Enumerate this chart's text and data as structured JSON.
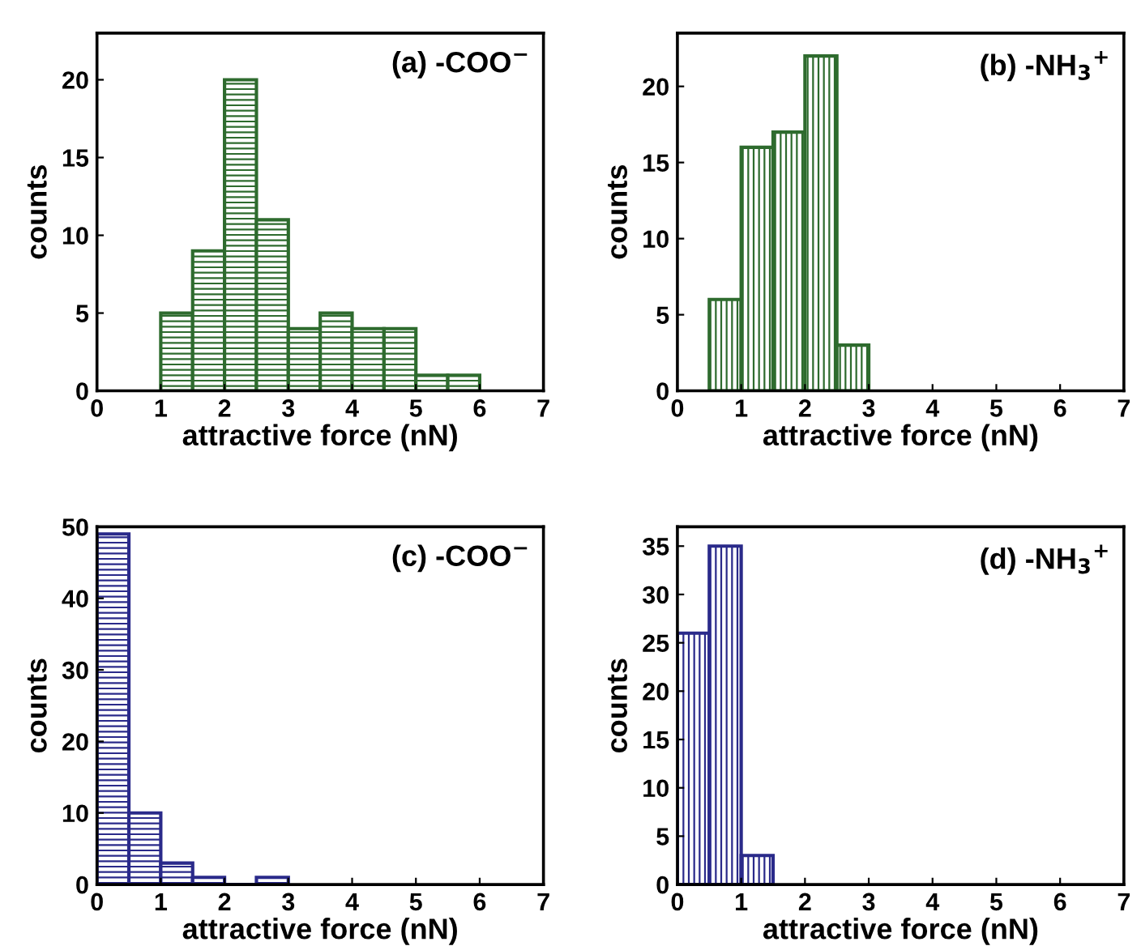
{
  "chart_data": [
    {
      "type": "histogram",
      "xlabel": "attractive force (nN)",
      "ylabel": "counts",
      "annotations": [
        "(a) -COO$^{−}$"
      ],
      "bins": [
        1,
        1.5,
        2,
        2.5,
        3,
        3.5,
        4,
        4.5,
        5,
        5.5,
        6
      ],
      "values": [
        5,
        9,
        20,
        11,
        4,
        5,
        4,
        4,
        1,
        1
      ],
      "color": "#2e6b2e",
      "xlim": [
        0,
        7
      ],
      "xticks": [
        0,
        1,
        2,
        3,
        4,
        5,
        6,
        7
      ],
      "ylim": [
        0,
        23
      ],
      "yticks": [
        0,
        5,
        10,
        15,
        20
      ],
      "grid": false,
      "legend": false
    },
    {
      "type": "histogram",
      "xlabel": "attractive force (nN)",
      "ylabel": "counts",
      "annotations": [
        "(b) -NH$_{3}$$^{+}$"
      ],
      "bins": [
        0.5,
        1,
        1.5,
        2,
        2.5,
        3
      ],
      "values": [
        6,
        16,
        17,
        22,
        3
      ],
      "color": "#2e6b2e",
      "xlim": [
        0,
        7
      ],
      "xticks": [
        0,
        1,
        2,
        3,
        4,
        5,
        6,
        7
      ],
      "ylim": [
        0,
        23.5
      ],
      "yticks": [
        0,
        5,
        10,
        15,
        20
      ],
      "grid": false,
      "legend": false
    },
    {
      "type": "histogram",
      "xlabel": "attractive force (nN)",
      "ylabel": "counts",
      "annotations": [
        "(c) -COO$^{−}$"
      ],
      "bins": [
        0,
        0.5,
        1,
        1.5,
        2,
        2.5,
        3
      ],
      "values": [
        49,
        10,
        3,
        1,
        0,
        1
      ],
      "color": "#2a2a8a",
      "xlim": [
        0,
        7
      ],
      "xticks": [
        0,
        1,
        2,
        3,
        4,
        5,
        6,
        7
      ],
      "ylim": [
        0,
        50
      ],
      "yticks": [
        0,
        10,
        20,
        30,
        40,
        50
      ],
      "grid": false,
      "legend": false
    },
    {
      "type": "histogram",
      "xlabel": "attractive force (nN)",
      "ylabel": "counts",
      "annotations": [
        "(d) -NH$_{3}$$^{+}$"
      ],
      "bins": [
        0,
        0.5,
        1,
        1.5
      ],
      "values": [
        26,
        35,
        3
      ],
      "color": "#2a2a8a",
      "xlim": [
        0,
        7
      ],
      "xticks": [
        0,
        1,
        2,
        3,
        4,
        5,
        6,
        7
      ],
      "ylim": [
        0,
        37
      ],
      "yticks": [
        0,
        5,
        10,
        15,
        20,
        25,
        30,
        35
      ],
      "grid": false,
      "legend": false
    }
  ]
}
